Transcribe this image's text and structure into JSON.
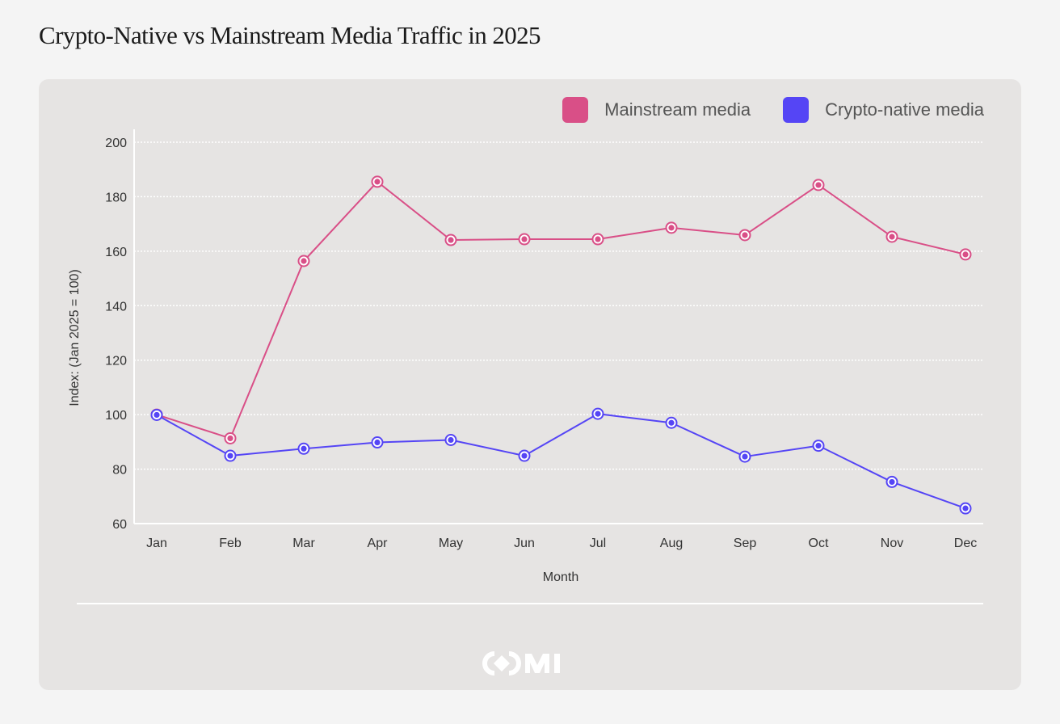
{
  "page": {
    "title": "Crypto-Native vs Mainstream Media Traffic in 2025"
  },
  "colors": {
    "mainstream": "#d94f87",
    "crypto": "#5545f5",
    "grid": "#ffffff",
    "axis": "#ffffff"
  },
  "chart_data": {
    "type": "line",
    "title": "Crypto-Native vs Mainstream Media Traffic in 2025",
    "xlabel": "Month",
    "ylabel": "Index: (Jan 2025 = 100)",
    "categories": [
      "Jan",
      "Feb",
      "Mar",
      "Apr",
      "May",
      "Jun",
      "Jul",
      "Aug",
      "Sep",
      "Oct",
      "Nov",
      "Dec"
    ],
    "ylim": [
      60,
      200
    ],
    "yticks": [
      60,
      80,
      100,
      120,
      140,
      160,
      180,
      200
    ],
    "grid": true,
    "legend_position": "top-right",
    "series": [
      {
        "name": "Mainstream media",
        "color": "#d94f87",
        "values": [
          100,
          91.3,
          156.4,
          185.5,
          164.1,
          164.4,
          164.4,
          168.6,
          165.9,
          184.3,
          165.3,
          158.8
        ]
      },
      {
        "name": "Crypto-native media",
        "color": "#5545f5",
        "values": [
          99.9,
          84.9,
          87.5,
          89.8,
          90.7,
          84.9,
          100.3,
          97.0,
          84.6,
          88.6,
          75.3,
          65.6
        ]
      }
    ]
  },
  "footer": {
    "logo_icon": "omi-logo-icon"
  }
}
